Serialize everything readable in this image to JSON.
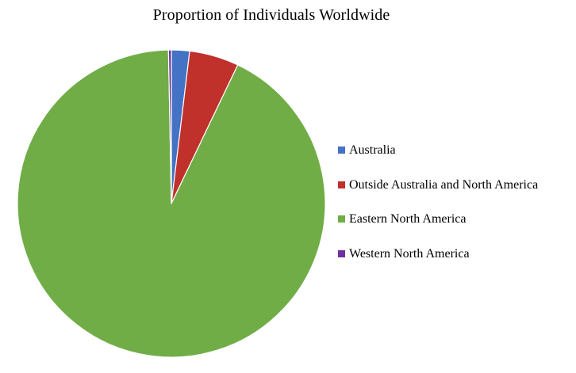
{
  "chart_data": {
    "type": "pie",
    "title": "Proportion of Individuals Worldwide",
    "legend_position": "right",
    "slices": [
      {
        "label": "Australia",
        "value": 1.9,
        "color": "#4472c4"
      },
      {
        "label": "Outside Australia and North America",
        "value": 5.2,
        "color": "#c0312b"
      },
      {
        "label": "Eastern North America",
        "value": 92.6,
        "color": "#70ad47"
      },
      {
        "label": "Western North America",
        "value": 0.3,
        "color": "#7030a0"
      }
    ]
  }
}
